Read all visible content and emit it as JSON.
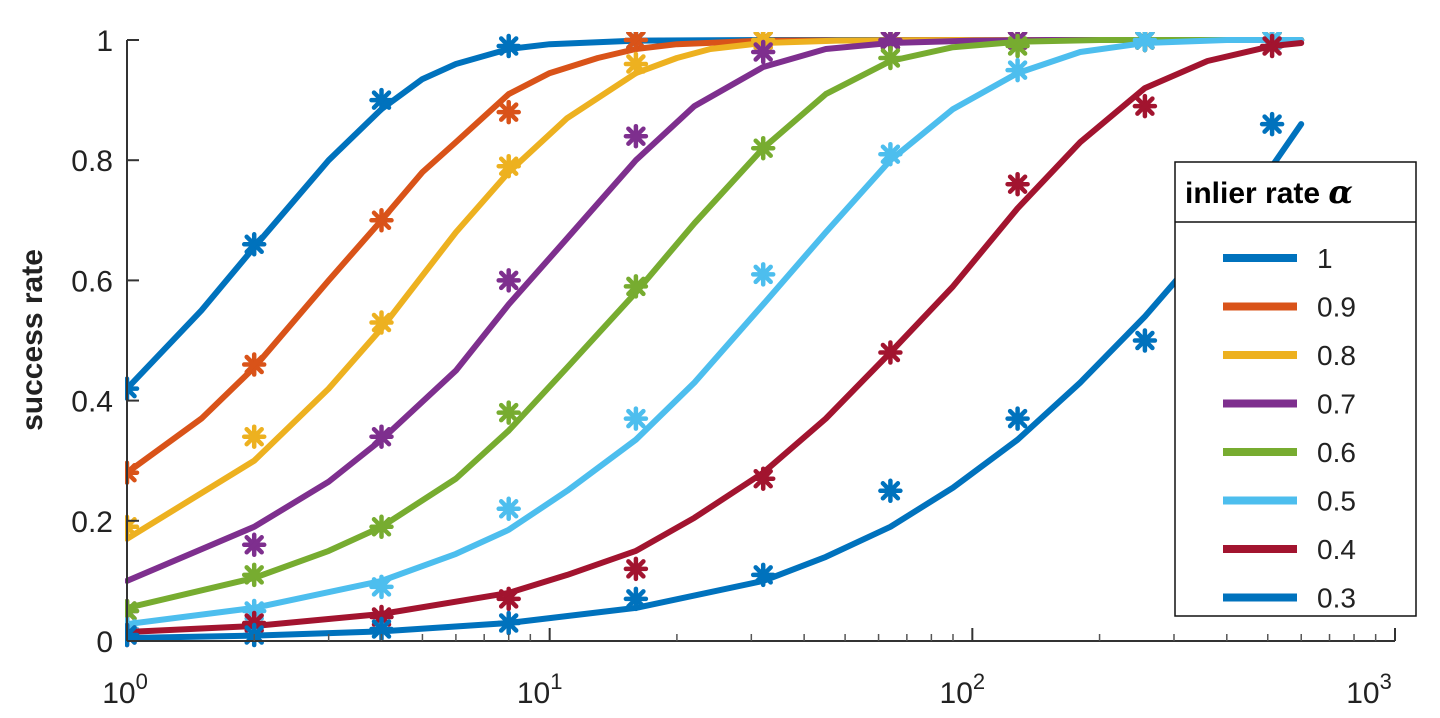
{
  "chart_data": {
    "type": "line",
    "title": "",
    "xlabel": "",
    "ylabel": "success rate",
    "xscale": "log",
    "xlim": [
      1,
      1000
    ],
    "ylim": [
      0,
      1
    ],
    "x_ticks": [
      1,
      10,
      100,
      1000
    ],
    "x_tick_labels": [
      {
        "base": "10",
        "exp": "0"
      },
      {
        "base": "10",
        "exp": "1"
      },
      {
        "base": "10",
        "exp": "2"
      },
      {
        "base": "10",
        "exp": "3"
      }
    ],
    "y_ticks": [
      0,
      0.2,
      0.4,
      0.6,
      0.8,
      1
    ],
    "y_tick_labels": [
      "0",
      "0.2",
      "0.4",
      "0.6",
      "0.8",
      "1"
    ],
    "grid": false,
    "legend": {
      "title": "inlier rate",
      "title_symbol": "α",
      "placement": "right"
    },
    "x": [
      1,
      2,
      4,
      8,
      16,
      32,
      64,
      128,
      256,
      512
    ],
    "series": [
      {
        "name": "1",
        "color": "#0072BD",
        "points": [
          0.42,
          0.66,
          0.9,
          0.99,
          1.0,
          1.0,
          1.0,
          1.0,
          1.0,
          1.0
        ],
        "fit": [
          [
            1,
            0.42
          ],
          [
            1.5,
            0.55
          ],
          [
            2,
            0.655
          ],
          [
            3,
            0.8
          ],
          [
            4,
            0.885
          ],
          [
            5,
            0.935
          ],
          [
            6,
            0.96
          ],
          [
            8,
            0.985
          ],
          [
            10,
            0.993
          ],
          [
            16,
            0.999
          ],
          [
            32,
            1.0
          ],
          [
            100,
            1.0
          ],
          [
            600,
            1.0
          ]
        ]
      },
      {
        "name": "0.9",
        "color": "#D95319",
        "points": [
          0.28,
          0.46,
          0.7,
          0.88,
          1.0,
          1.0,
          1.0,
          1.0,
          1.0,
          1.0
        ],
        "fit": [
          [
            1,
            0.28
          ],
          [
            1.5,
            0.37
          ],
          [
            2,
            0.455
          ],
          [
            3,
            0.6
          ],
          [
            4,
            0.7
          ],
          [
            5,
            0.78
          ],
          [
            6,
            0.83
          ],
          [
            8,
            0.91
          ],
          [
            10,
            0.945
          ],
          [
            13,
            0.97
          ],
          [
            16,
            0.985
          ],
          [
            20,
            0.993
          ],
          [
            32,
            0.999
          ],
          [
            100,
            1.0
          ],
          [
            600,
            1.0
          ]
        ]
      },
      {
        "name": "0.8",
        "color": "#EDB120",
        "points": [
          0.19,
          0.34,
          0.53,
          0.79,
          0.96,
          1.0,
          1.0,
          1.0,
          1.0,
          1.0
        ],
        "fit": [
          [
            1,
            0.17
          ],
          [
            2,
            0.3
          ],
          [
            3,
            0.42
          ],
          [
            4,
            0.52
          ],
          [
            6,
            0.68
          ],
          [
            8,
            0.78
          ],
          [
            11,
            0.87
          ],
          [
            16,
            0.945
          ],
          [
            20,
            0.97
          ],
          [
            24,
            0.985
          ],
          [
            32,
            0.995
          ],
          [
            48,
            0.999
          ],
          [
            100,
            1.0
          ],
          [
            600,
            1.0
          ]
        ]
      },
      {
        "name": "0.7",
        "color": "#7E2F8E",
        "points": [
          0.05,
          0.16,
          0.34,
          0.6,
          0.84,
          0.98,
          1.0,
          1.0,
          1.0,
          1.0
        ],
        "fit": [
          [
            1,
            0.1
          ],
          [
            2,
            0.19
          ],
          [
            3,
            0.265
          ],
          [
            4,
            0.335
          ],
          [
            6,
            0.45
          ],
          [
            8,
            0.56
          ],
          [
            11,
            0.67
          ],
          [
            16,
            0.8
          ],
          [
            22,
            0.89
          ],
          [
            32,
            0.955
          ],
          [
            45,
            0.985
          ],
          [
            64,
            0.995
          ],
          [
            100,
            0.999
          ],
          [
            150,
            1.0
          ],
          [
            600,
            1.0
          ]
        ]
      },
      {
        "name": "0.6",
        "color": "#77AC30",
        "points": [
          0.05,
          0.11,
          0.19,
          0.38,
          0.59,
          0.82,
          0.97,
          0.99,
          1.0,
          1.0
        ],
        "fit": [
          [
            1,
            0.055
          ],
          [
            2,
            0.105
          ],
          [
            3,
            0.15
          ],
          [
            4,
            0.19
          ],
          [
            6,
            0.27
          ],
          [
            8,
            0.35
          ],
          [
            11,
            0.455
          ],
          [
            16,
            0.58
          ],
          [
            22,
            0.695
          ],
          [
            32,
            0.82
          ],
          [
            45,
            0.91
          ],
          [
            64,
            0.965
          ],
          [
            90,
            0.988
          ],
          [
            128,
            0.997
          ],
          [
            200,
            1.0
          ],
          [
            600,
            1.0
          ]
        ]
      },
      {
        "name": "0.5",
        "color": "#4DBEEE",
        "points": [
          0.02,
          0.05,
          0.09,
          0.22,
          0.37,
          0.61,
          0.81,
          0.95,
          1.0,
          1.0
        ],
        "fit": [
          [
            1,
            0.028
          ],
          [
            2,
            0.055
          ],
          [
            4,
            0.1
          ],
          [
            6,
            0.145
          ],
          [
            8,
            0.185
          ],
          [
            11,
            0.25
          ],
          [
            16,
            0.335
          ],
          [
            22,
            0.43
          ],
          [
            32,
            0.56
          ],
          [
            45,
            0.68
          ],
          [
            64,
            0.8
          ],
          [
            90,
            0.885
          ],
          [
            128,
            0.945
          ],
          [
            180,
            0.98
          ],
          [
            256,
            0.995
          ],
          [
            400,
            1.0
          ],
          [
            600,
            1.0
          ]
        ]
      },
      {
        "name": "0.4",
        "color": "#A2142F",
        "points": [
          0.01,
          0.03,
          0.04,
          0.07,
          0.12,
          0.27,
          0.48,
          0.76,
          0.89,
          0.99
        ],
        "fit": [
          [
            1,
            0.015
          ],
          [
            2,
            0.025
          ],
          [
            4,
            0.045
          ],
          [
            8,
            0.08
          ],
          [
            11,
            0.11
          ],
          [
            16,
            0.15
          ],
          [
            22,
            0.205
          ],
          [
            32,
            0.28
          ],
          [
            45,
            0.37
          ],
          [
            64,
            0.48
          ],
          [
            90,
            0.59
          ],
          [
            128,
            0.72
          ],
          [
            180,
            0.83
          ],
          [
            256,
            0.92
          ],
          [
            360,
            0.965
          ],
          [
            512,
            0.99
          ],
          [
            600,
            0.995
          ]
        ]
      },
      {
        "name": "0.3",
        "color": "#0072BD",
        "points": [
          0.01,
          0.01,
          0.02,
          0.03,
          0.07,
          0.11,
          0.25,
          0.37,
          0.5,
          0.86
        ],
        "fit": [
          [
            1,
            0.005
          ],
          [
            2,
            0.009
          ],
          [
            4,
            0.016
          ],
          [
            8,
            0.03
          ],
          [
            16,
            0.055
          ],
          [
            32,
            0.1
          ],
          [
            45,
            0.14
          ],
          [
            64,
            0.19
          ],
          [
            90,
            0.255
          ],
          [
            128,
            0.335
          ],
          [
            180,
            0.43
          ],
          [
            256,
            0.54
          ],
          [
            360,
            0.66
          ],
          [
            512,
            0.79
          ],
          [
            600,
            0.86
          ]
        ]
      }
    ]
  }
}
